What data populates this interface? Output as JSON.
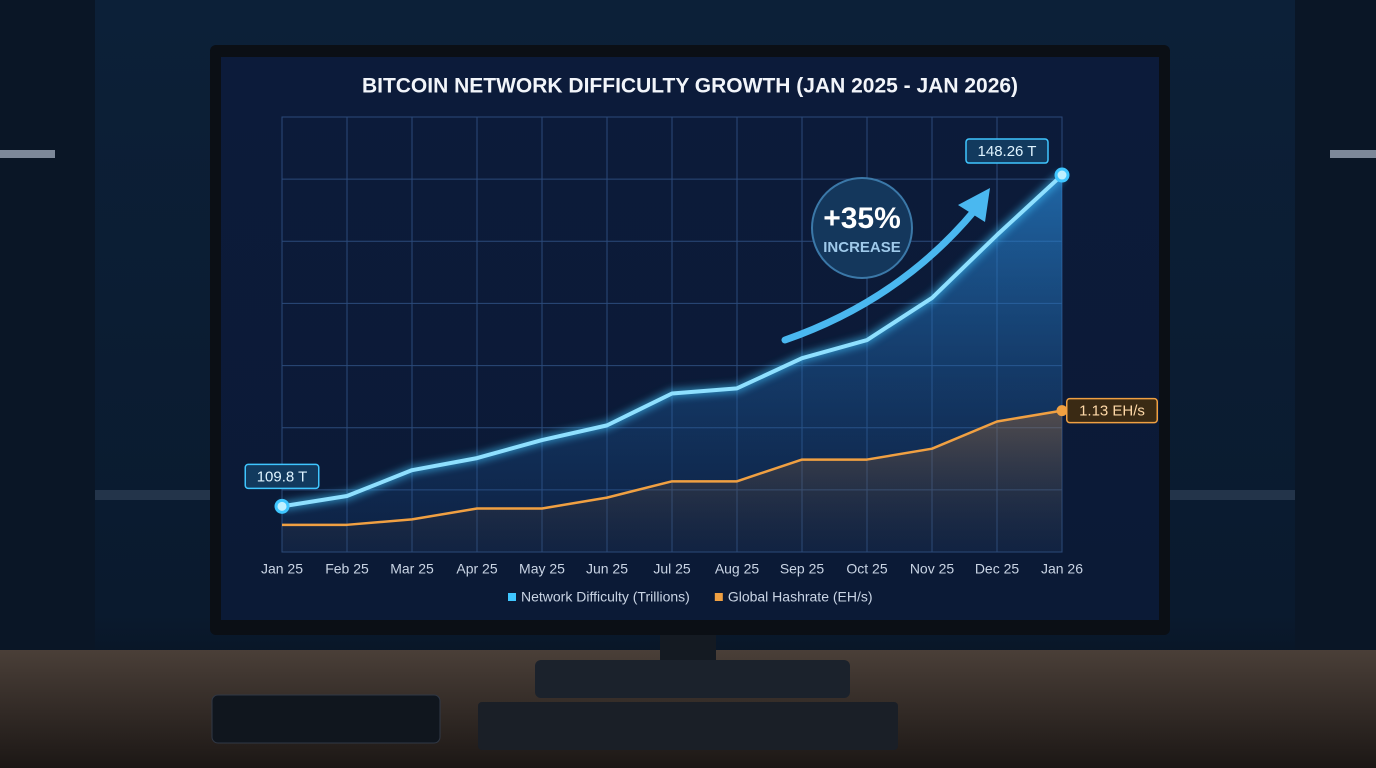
{
  "chart_data": {
    "type": "line",
    "title": "BITCOIN NETWORK DIFFICULTY GROWTH (JAN 2025 - JAN 2026)",
    "categories": [
      "Jan 25",
      "Feb 25",
      "Mar 25",
      "Apr 25",
      "May 25",
      "Jun 25",
      "Jul 25",
      "Aug 25",
      "Sep 25",
      "Oct 25",
      "Nov 25",
      "Dec 25",
      "Jan 26"
    ],
    "series": [
      {
        "name": "Network Difficulty (Trillions)",
        "color": "#3fc6ff",
        "values": [
          109.8,
          111.0,
          114.0,
          115.4,
          117.5,
          119.2,
          122.9,
          123.5,
          127.0,
          129.1,
          134.0,
          141.3,
          148.26
        ],
        "value_labels": [
          "109.8 T",
          null,
          null,
          null,
          null,
          null,
          null,
          null,
          null,
          null,
          null,
          null,
          "148.26 T"
        ]
      },
      {
        "name": "Global Hashrate (EH/s)",
        "color": "#f0a042",
        "axis": "y2",
        "values": [
          0.92,
          0.92,
          0.93,
          0.95,
          0.95,
          0.97,
          1.0,
          1.0,
          1.04,
          1.04,
          1.06,
          1.11,
          1.13
        ],
        "value_labels": [
          null,
          null,
          null,
          null,
          null,
          null,
          null,
          null,
          null,
          null,
          null,
          null,
          "1.13 EH/s"
        ]
      }
    ],
    "ylim": [
      104.5,
      155
    ],
    "y2lim": [
      0.87,
      1.67
    ],
    "grid": true,
    "legend": "bottom",
    "annotations": [
      "+35%",
      "INCREASE"
    ]
  }
}
